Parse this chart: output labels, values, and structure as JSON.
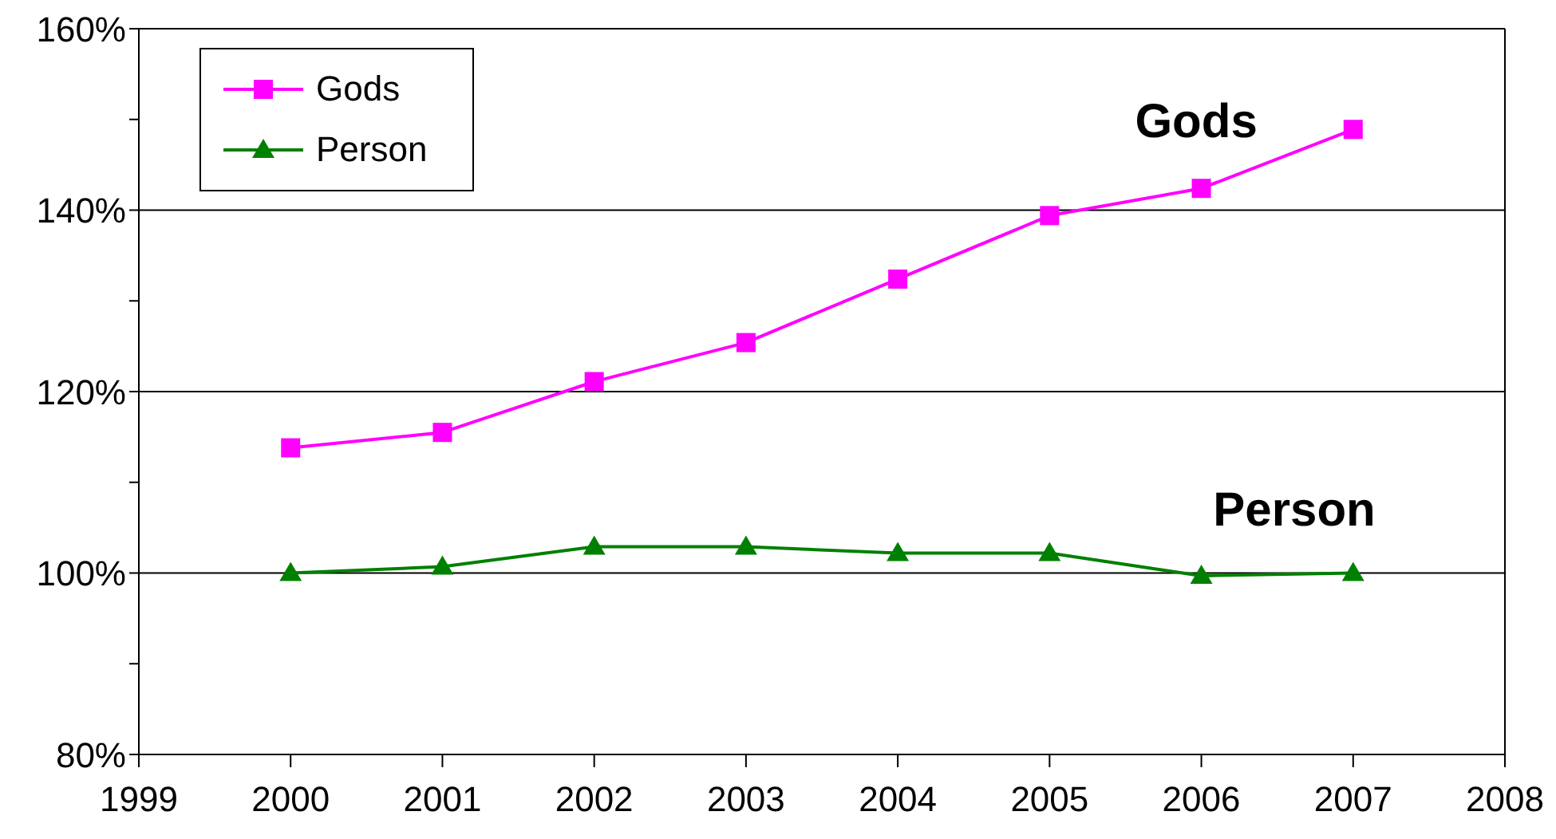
{
  "chart_data": {
    "type": "line",
    "x": [
      2000,
      2001,
      2002,
      2003,
      2004,
      2005,
      2006,
      2007
    ],
    "series": [
      {
        "name": "Gods",
        "color": "#ff00ff",
        "marker": "square",
        "values": [
          113.8,
          115.5,
          121.1,
          125.4,
          132.4,
          139.4,
          142.4,
          148.9
        ]
      },
      {
        "name": "Person",
        "color": "#008000",
        "marker": "triangle",
        "values": [
          100,
          100.7,
          102.9,
          102.9,
          102.2,
          102.2,
          99.7,
          100
        ]
      }
    ],
    "xlim": [
      1999,
      2008
    ],
    "xticks": [
      1999,
      2000,
      2001,
      2002,
      2003,
      2004,
      2005,
      2006,
      2007,
      2008
    ],
    "ylim": [
      80,
      160
    ],
    "yticks": [
      {
        "value": 80,
        "label": "80%"
      },
      {
        "value": 90,
        "label": null
      },
      {
        "value": 100,
        "label": "100%"
      },
      {
        "value": 110,
        "label": null
      },
      {
        "value": 120,
        "label": "120%"
      },
      {
        "value": 130,
        "label": null
      },
      {
        "value": 140,
        "label": "140%"
      },
      {
        "value": 150,
        "label": null
      },
      {
        "value": 160,
        "label": "160%"
      }
    ],
    "grid": "y",
    "legend": "top left"
  }
}
